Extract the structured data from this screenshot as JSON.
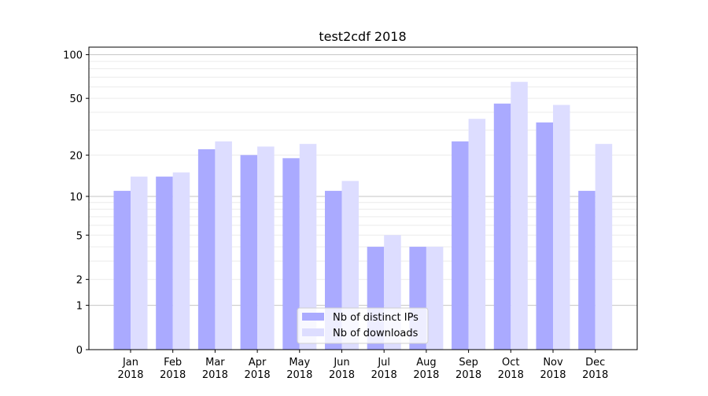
{
  "chart_data": {
    "type": "bar",
    "title": "test2cdf 2018",
    "xlabel": "",
    "ylabel": "",
    "yscale": "log(1+y)",
    "ylim": [
      0,
      110
    ],
    "yticks": [
      0,
      1,
      2,
      5,
      10,
      20,
      50,
      100
    ],
    "grid": true,
    "legend_placement": "lower-center",
    "categories": [
      "Jan\n2018",
      "Feb\n2018",
      "Mar\n2018",
      "Apr\n2018",
      "May\n2018",
      "Jun\n2018",
      "Jul\n2018",
      "Aug\n2018",
      "Sep\n2018",
      "Oct\n2018",
      "Nov\n2018",
      "Dec\n2018"
    ],
    "series": [
      {
        "name": "Nb of distinct IPs",
        "color": "#aaaaff",
        "values": [
          11,
          14,
          22,
          20,
          19,
          11,
          4,
          4,
          25,
          46,
          34,
          11
        ]
      },
      {
        "name": "Nb of downloads",
        "color": "#ddddff",
        "values": [
          14,
          15,
          25,
          23,
          24,
          13,
          5,
          4,
          36,
          65,
          45,
          24
        ]
      }
    ]
  }
}
